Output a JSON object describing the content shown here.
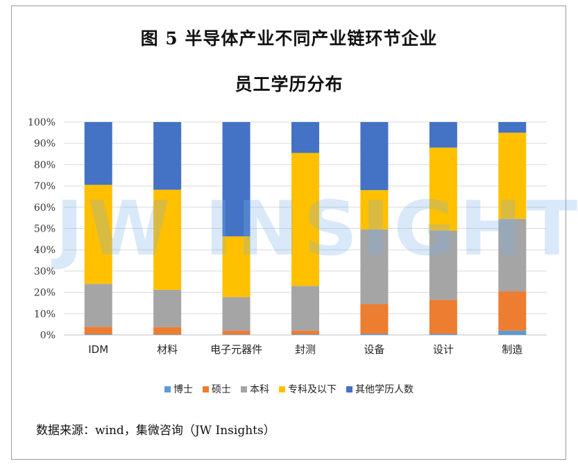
{
  "title_line1": "图 5  半导体产业不同产业链环节企业",
  "title_line2": "员工学历分布",
  "watermark": "JW INSIGHTS",
  "source": "数据来源：wind，集微咨询（JW Insights）",
  "colors": {
    "博士": "#5b9bd5",
    "硕士": "#ed7d31",
    "本科": "#a5a5a5",
    "专科及以下": "#ffc000",
    "其他学历人数": "#4472c4"
  },
  "chart_data": {
    "type": "bar",
    "stacked": "percent",
    "categories": [
      "IDM",
      "材料",
      "电子元器件",
      "封测",
      "设备",
      "设计",
      "制造"
    ],
    "series": [
      {
        "name": "博士",
        "values": [
          0.3,
          0.2,
          0.2,
          0.3,
          0.5,
          0.5,
          2.0
        ]
      },
      {
        "name": "硕士",
        "values": [
          3.5,
          3.5,
          1.8,
          1.7,
          14.0,
          16.0,
          18.5
        ]
      },
      {
        "name": "本科",
        "values": [
          20.2,
          17.5,
          15.8,
          21.0,
          35.0,
          32.5,
          34.0
        ]
      },
      {
        "name": "专科及以下",
        "values": [
          46.5,
          47.0,
          28.5,
          62.5,
          18.5,
          39.0,
          40.5
        ]
      },
      {
        "name": "其他学历人数",
        "values": [
          29.5,
          31.8,
          53.7,
          14.5,
          32.0,
          12.0,
          5.0
        ]
      }
    ],
    "yticks": [
      "0%",
      "10%",
      "20%",
      "30%",
      "40%",
      "50%",
      "60%",
      "70%",
      "80%",
      "90%",
      "100%"
    ],
    "ylim": [
      0,
      100
    ],
    "grid": true,
    "legend_position": "bottom"
  }
}
